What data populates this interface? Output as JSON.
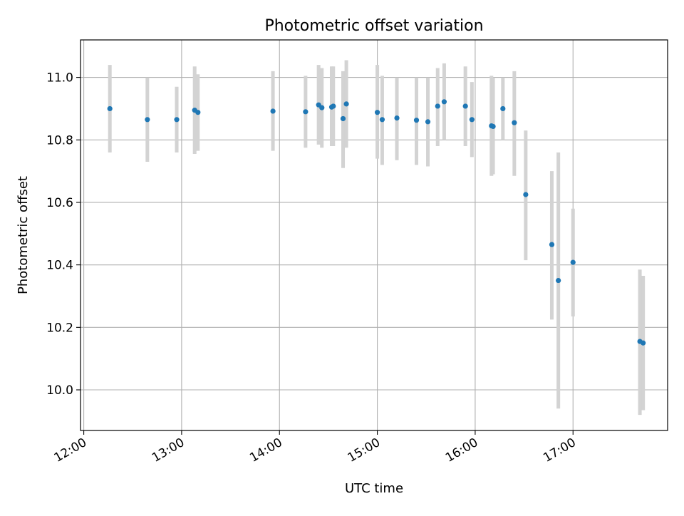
{
  "chart_data": {
    "type": "scatter",
    "title": "Photometric offset variation",
    "xlabel": "UTC time",
    "ylabel": "Photometric offset",
    "x_ticks": [
      "12:00",
      "13:00",
      "14:00",
      "15:00",
      "16:00",
      "17:00"
    ],
    "y_ticks": [
      "10.0",
      "10.2",
      "10.4",
      "10.6",
      "10.8",
      "11.0"
    ],
    "xlim": [
      "11:58",
      "17:58"
    ],
    "ylim": [
      9.87,
      11.12
    ],
    "grid": true,
    "colors": {
      "point": "#1f77b4",
      "errorbar": "#d3d3d3",
      "grid": "#b0b0b0"
    },
    "points": [
      {
        "x": "12:16",
        "y": 10.9,
        "lo": 10.76,
        "hi": 11.04
      },
      {
        "x": "12:39",
        "y": 10.865,
        "lo": 10.73,
        "hi": 11.0
      },
      {
        "x": "12:57",
        "y": 10.865,
        "lo": 10.76,
        "hi": 10.97
      },
      {
        "x": "13:08",
        "y": 10.895,
        "lo": 10.755,
        "hi": 11.035
      },
      {
        "x": "13:10",
        "y": 10.888,
        "lo": 10.765,
        "hi": 11.01
      },
      {
        "x": "13:56",
        "y": 10.892,
        "lo": 10.765,
        "hi": 11.02
      },
      {
        "x": "14:16",
        "y": 10.89,
        "lo": 10.775,
        "hi": 11.005
      },
      {
        "x": "14:24",
        "y": 10.912,
        "lo": 10.785,
        "hi": 11.04
      },
      {
        "x": "14:26",
        "y": 10.903,
        "lo": 10.775,
        "hi": 11.03
      },
      {
        "x": "14:32",
        "y": 10.905,
        "lo": 10.78,
        "hi": 11.035
      },
      {
        "x": "14:33",
        "y": 10.908,
        "lo": 10.78,
        "hi": 11.035
      },
      {
        "x": "14:39",
        "y": 10.868,
        "lo": 10.71,
        "hi": 11.02
      },
      {
        "x": "14:41",
        "y": 10.915,
        "lo": 10.775,
        "hi": 11.055
      },
      {
        "x": "15:00",
        "y": 10.888,
        "lo": 10.74,
        "hi": 11.04
      },
      {
        "x": "15:03",
        "y": 10.865,
        "lo": 10.72,
        "hi": 11.005
      },
      {
        "x": "15:12",
        "y": 10.87,
        "lo": 10.735,
        "hi": 11.0
      },
      {
        "x": "15:24",
        "y": 10.863,
        "lo": 10.72,
        "hi": 11.0
      },
      {
        "x": "15:31",
        "y": 10.858,
        "lo": 10.715,
        "hi": 11.0
      },
      {
        "x": "15:37",
        "y": 10.908,
        "lo": 10.78,
        "hi": 11.03
      },
      {
        "x": "15:41",
        "y": 10.922,
        "lo": 10.8,
        "hi": 11.045
      },
      {
        "x": "15:54",
        "y": 10.908,
        "lo": 10.78,
        "hi": 11.035
      },
      {
        "x": "15:58",
        "y": 10.865,
        "lo": 10.745,
        "hi": 10.985
      },
      {
        "x": "16:10",
        "y": 10.845,
        "lo": 10.685,
        "hi": 11.005
      },
      {
        "x": "16:11",
        "y": 10.843,
        "lo": 10.69,
        "hi": 11.0
      },
      {
        "x": "16:17",
        "y": 10.9,
        "lo": 10.8,
        "hi": 11.0
      },
      {
        "x": "16:24",
        "y": 10.855,
        "lo": 10.685,
        "hi": 11.02
      },
      {
        "x": "16:31",
        "y": 10.625,
        "lo": 10.415,
        "hi": 10.83
      },
      {
        "x": "16:47",
        "y": 10.465,
        "lo": 10.225,
        "hi": 10.7
      },
      {
        "x": "16:51",
        "y": 10.35,
        "lo": 9.94,
        "hi": 10.76
      },
      {
        "x": "17:00",
        "y": 10.408,
        "lo": 10.235,
        "hi": 10.58
      },
      {
        "x": "17:41",
        "y": 10.155,
        "lo": 9.92,
        "hi": 10.385
      },
      {
        "x": "17:43",
        "y": 10.15,
        "lo": 9.935,
        "hi": 10.365
      }
    ]
  }
}
